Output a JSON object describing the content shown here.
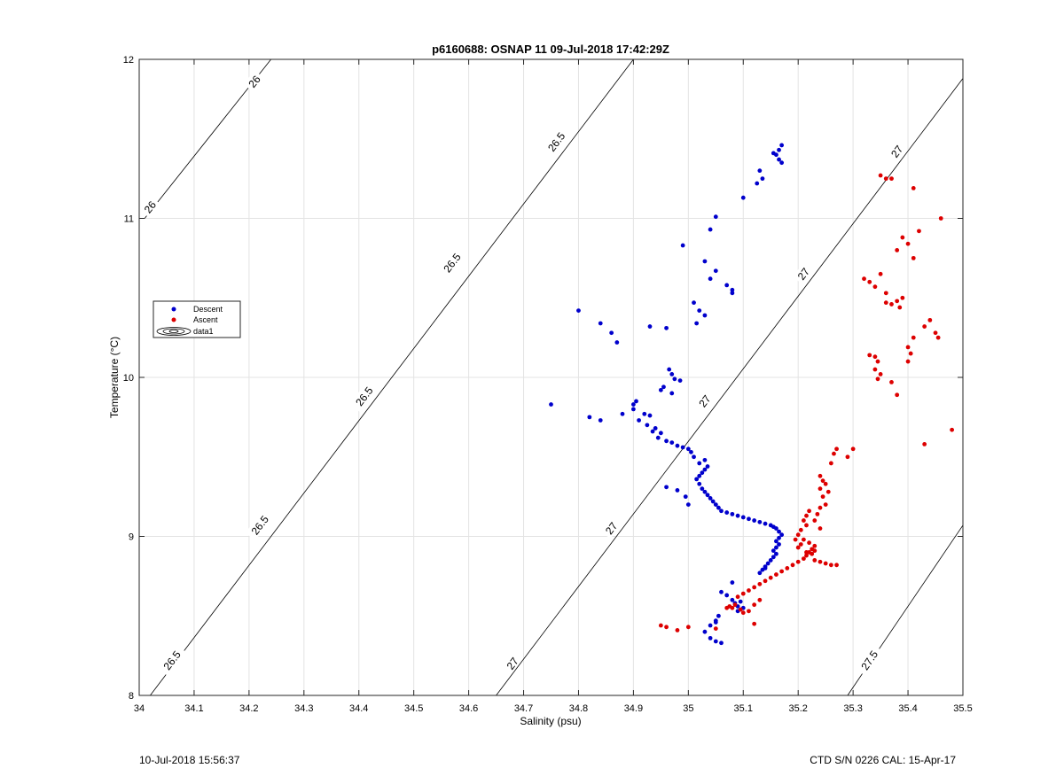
{
  "colors": {
    "descent": "#0000cc",
    "ascent": "#dd0000",
    "grid": "#e3e3e3",
    "contour": "#000000"
  },
  "footer": {
    "left": "10-Jul-2018 15:56:37",
    "right": "CTD S/N 0226  CAL: 15-Apr-17"
  },
  "chart_data": {
    "type": "scatter",
    "title": "p6160688: OSNAP 11 09-Jul-2018 17:42:29Z",
    "xlabel": "Salinity (psu)",
    "ylabel": "Temperature (°C)",
    "xlim": [
      34,
      35.5
    ],
    "ylim": [
      8,
      12
    ],
    "xticks": [
      34,
      34.1,
      34.2,
      34.3,
      34.4,
      34.5,
      34.6,
      34.7,
      34.8,
      34.9,
      35,
      35.1,
      35.2,
      35.3,
      35.4,
      35.5
    ],
    "xtick_labels": [
      "34",
      "34.1",
      "34.2",
      "34.3",
      "34.4",
      "34.5",
      "34.6",
      "34.7",
      "34.8",
      "34.9",
      "35",
      "35.1",
      "35.2",
      "35.3",
      "35.4",
      "35.5"
    ],
    "yticks": [
      8,
      9,
      10,
      11,
      12
    ],
    "ytick_labels": [
      "8",
      "9",
      "10",
      "11",
      "12"
    ],
    "grid": true,
    "legend": {
      "position": "left",
      "entries": [
        "Descent",
        "Ascent",
        "data1"
      ]
    },
    "contours": [
      {
        "label": "26",
        "x1": 34.01,
        "y1": 11.0,
        "x2": 34.24,
        "y2": 12.0,
        "label_points": [
          [
            34.02,
            11.07
          ],
          [
            34.21,
            11.86
          ]
        ]
      },
      {
        "label": "26.5",
        "x1": 34.02,
        "y1": 8.0,
        "x2": 34.9,
        "y2": 12.0,
        "label_points": [
          [
            34.06,
            8.22
          ],
          [
            34.22,
            9.07
          ],
          [
            34.41,
            9.88
          ],
          [
            34.57,
            10.72
          ],
          [
            34.76,
            11.48
          ]
        ]
      },
      {
        "label": "27",
        "x1": 34.65,
        "y1": 8.0,
        "x2": 35.5,
        "y2": 11.88,
        "label_points": [
          [
            34.68,
            8.2
          ],
          [
            34.86,
            9.05
          ],
          [
            35.03,
            9.85
          ],
          [
            35.21,
            10.65
          ],
          [
            35.38,
            11.42
          ]
        ]
      },
      {
        "label": "27.5",
        "x1": 35.29,
        "y1": 8.0,
        "x2": 35.5,
        "y2": 9.07,
        "label_points": [
          [
            35.33,
            8.22
          ]
        ]
      }
    ],
    "series": [
      {
        "name": "Descent",
        "color": "#0000cc",
        "points": [
          [
            35.17,
            11.46
          ],
          [
            35.165,
            11.43
          ],
          [
            35.16,
            11.4
          ],
          [
            35.165,
            11.37
          ],
          [
            35.17,
            11.35
          ],
          [
            35.155,
            11.41
          ],
          [
            35.13,
            11.3
          ],
          [
            35.125,
            11.22
          ],
          [
            35.135,
            11.25
          ],
          [
            35.1,
            11.13
          ],
          [
            35.05,
            11.01
          ],
          [
            35.04,
            10.93
          ],
          [
            34.99,
            10.83
          ],
          [
            35.03,
            10.73
          ],
          [
            35.05,
            10.67
          ],
          [
            35.04,
            10.62
          ],
          [
            35.07,
            10.58
          ],
          [
            35.08,
            10.55
          ],
          [
            35.08,
            10.53
          ],
          [
            35.01,
            10.47
          ],
          [
            35.02,
            10.42
          ],
          [
            35.03,
            10.39
          ],
          [
            35.015,
            10.34
          ],
          [
            34.8,
            10.42
          ],
          [
            34.84,
            10.34
          ],
          [
            34.86,
            10.28
          ],
          [
            34.87,
            10.22
          ],
          [
            34.93,
            10.32
          ],
          [
            34.96,
            10.31
          ],
          [
            34.965,
            10.05
          ],
          [
            34.97,
            10.02
          ],
          [
            34.975,
            9.99
          ],
          [
            34.985,
            9.98
          ],
          [
            34.955,
            9.94
          ],
          [
            34.97,
            9.9
          ],
          [
            34.95,
            9.92
          ],
          [
            34.75,
            9.83
          ],
          [
            34.82,
            9.75
          ],
          [
            34.84,
            9.73
          ],
          [
            34.88,
            9.77
          ],
          [
            34.9,
            9.83
          ],
          [
            34.905,
            9.85
          ],
          [
            34.9,
            9.8
          ],
          [
            34.92,
            9.77
          ],
          [
            34.93,
            9.76
          ],
          [
            34.91,
            9.73
          ],
          [
            34.925,
            9.7
          ],
          [
            34.94,
            9.68
          ],
          [
            34.935,
            9.66
          ],
          [
            34.95,
            9.65
          ],
          [
            34.945,
            9.62
          ],
          [
            34.96,
            9.6
          ],
          [
            34.97,
            9.59
          ],
          [
            34.98,
            9.57
          ],
          [
            34.99,
            9.56
          ],
          [
            35.0,
            9.55
          ],
          [
            35.005,
            9.53
          ],
          [
            35.01,
            9.5
          ],
          [
            35.03,
            9.48
          ],
          [
            35.02,
            9.46
          ],
          [
            35.035,
            9.44
          ],
          [
            35.03,
            9.42
          ],
          [
            35.025,
            9.4
          ],
          [
            35.02,
            9.38
          ],
          [
            35.015,
            9.36
          ],
          [
            35.02,
            9.33
          ],
          [
            35.025,
            9.3
          ],
          [
            35.03,
            9.28
          ],
          [
            35.035,
            9.26
          ],
          [
            35.04,
            9.24
          ],
          [
            35.045,
            9.22
          ],
          [
            35.05,
            9.2
          ],
          [
            35.055,
            9.18
          ],
          [
            35.06,
            9.16
          ],
          [
            35.07,
            9.15
          ],
          [
            35.08,
            9.14
          ],
          [
            35.09,
            9.13
          ],
          [
            35.1,
            9.12
          ],
          [
            35.11,
            9.11
          ],
          [
            35.12,
            9.1
          ],
          [
            35.13,
            9.09
          ],
          [
            35.14,
            9.08
          ],
          [
            35.15,
            9.07
          ],
          [
            35.155,
            9.06
          ],
          [
            35.16,
            9.05
          ],
          [
            35.165,
            9.03
          ],
          [
            35.17,
            9.01
          ],
          [
            35.165,
            8.99
          ],
          [
            35.16,
            8.97
          ],
          [
            35.165,
            8.95
          ],
          [
            35.16,
            8.93
          ],
          [
            35.155,
            8.91
          ],
          [
            35.16,
            8.89
          ],
          [
            35.155,
            8.87
          ],
          [
            35.15,
            8.85
          ],
          [
            35.145,
            8.83
          ],
          [
            35.14,
            8.81
          ],
          [
            35.135,
            8.79
          ],
          [
            35.13,
            8.77
          ],
          [
            35.14,
            8.8
          ],
          [
            34.96,
            9.31
          ],
          [
            34.98,
            9.29
          ],
          [
            34.995,
            9.25
          ],
          [
            35.0,
            9.2
          ],
          [
            35.06,
            8.65
          ],
          [
            35.07,
            8.63
          ],
          [
            35.08,
            8.6
          ],
          [
            35.085,
            8.58
          ],
          [
            35.09,
            8.56
          ],
          [
            35.1,
            8.55
          ],
          [
            35.09,
            8.53
          ],
          [
            35.08,
            8.71
          ],
          [
            35.095,
            8.59
          ],
          [
            35.06,
            8.33
          ],
          [
            35.05,
            8.34
          ],
          [
            35.04,
            8.36
          ],
          [
            35.03,
            8.4
          ],
          [
            35.04,
            8.44
          ],
          [
            35.05,
            8.47
          ],
          [
            35.055,
            8.5
          ],
          [
            35.05,
            8.46
          ]
        ]
      },
      {
        "name": "Ascent",
        "color": "#dd0000",
        "points": [
          [
            35.46,
            11.0
          ],
          [
            35.41,
            11.19
          ],
          [
            35.35,
            11.27
          ],
          [
            35.36,
            11.25
          ],
          [
            35.37,
            11.25
          ],
          [
            35.42,
            10.92
          ],
          [
            35.39,
            10.88
          ],
          [
            35.4,
            10.84
          ],
          [
            35.38,
            10.8
          ],
          [
            35.41,
            10.75
          ],
          [
            35.32,
            10.62
          ],
          [
            35.33,
            10.6
          ],
          [
            35.35,
            10.65
          ],
          [
            35.34,
            10.57
          ],
          [
            35.36,
            10.53
          ],
          [
            35.38,
            10.48
          ],
          [
            35.39,
            10.5
          ],
          [
            35.37,
            10.46
          ],
          [
            35.36,
            10.47
          ],
          [
            35.385,
            10.44
          ],
          [
            35.44,
            10.36
          ],
          [
            35.43,
            10.32
          ],
          [
            35.45,
            10.28
          ],
          [
            35.455,
            10.25
          ],
          [
            35.41,
            10.25
          ],
          [
            35.4,
            10.19
          ],
          [
            35.405,
            10.15
          ],
          [
            35.4,
            10.1
          ],
          [
            35.33,
            10.14
          ],
          [
            35.34,
            10.13
          ],
          [
            35.345,
            10.1
          ],
          [
            35.34,
            10.05
          ],
          [
            35.35,
            10.02
          ],
          [
            35.345,
            9.99
          ],
          [
            35.37,
            9.97
          ],
          [
            35.38,
            9.89
          ],
          [
            35.48,
            9.67
          ],
          [
            35.43,
            9.58
          ],
          [
            35.27,
            9.55
          ],
          [
            35.3,
            9.55
          ],
          [
            35.265,
            9.52
          ],
          [
            35.29,
            9.5
          ],
          [
            35.26,
            9.46
          ],
          [
            35.24,
            9.38
          ],
          [
            35.245,
            9.35
          ],
          [
            35.25,
            9.33
          ],
          [
            35.24,
            9.3
          ],
          [
            35.255,
            9.28
          ],
          [
            35.245,
            9.25
          ],
          [
            35.25,
            9.2
          ],
          [
            35.24,
            9.18
          ],
          [
            35.235,
            9.14
          ],
          [
            35.23,
            9.1
          ],
          [
            35.24,
            9.05
          ],
          [
            35.22,
            9.16
          ],
          [
            35.215,
            9.13
          ],
          [
            35.21,
            9.1
          ],
          [
            35.215,
            9.07
          ],
          [
            35.205,
            9.04
          ],
          [
            35.2,
            9.01
          ],
          [
            35.21,
            8.98
          ],
          [
            35.22,
            8.96
          ],
          [
            35.23,
            8.94
          ],
          [
            35.225,
            8.92
          ],
          [
            35.22,
            8.9
          ],
          [
            35.215,
            8.88
          ],
          [
            35.21,
            8.86
          ],
          [
            35.2,
            8.84
          ],
          [
            35.19,
            8.82
          ],
          [
            35.18,
            8.8
          ],
          [
            35.17,
            8.78
          ],
          [
            35.16,
            8.76
          ],
          [
            35.15,
            8.74
          ],
          [
            35.14,
            8.72
          ],
          [
            35.13,
            8.7
          ],
          [
            35.12,
            8.68
          ],
          [
            35.11,
            8.66
          ],
          [
            35.1,
            8.64
          ],
          [
            35.23,
            8.85
          ],
          [
            35.24,
            8.84
          ],
          [
            35.25,
            8.83
          ],
          [
            35.26,
            8.82
          ],
          [
            35.27,
            8.82
          ],
          [
            35.195,
            8.98
          ],
          [
            35.2,
            8.93
          ],
          [
            35.205,
            8.95
          ],
          [
            35.215,
            8.9
          ],
          [
            35.225,
            8.89
          ],
          [
            35.23,
            8.91
          ],
          [
            35.09,
            8.62
          ],
          [
            35.085,
            8.57
          ],
          [
            35.08,
            8.55
          ],
          [
            35.075,
            8.56
          ],
          [
            35.07,
            8.55
          ],
          [
            35.095,
            8.54
          ],
          [
            35.1,
            8.52
          ],
          [
            35.11,
            8.53
          ],
          [
            35.12,
            8.57
          ],
          [
            35.13,
            8.6
          ],
          [
            35.12,
            8.45
          ],
          [
            35.05,
            8.42
          ],
          [
            35.0,
            8.43
          ],
          [
            34.95,
            8.44
          ],
          [
            34.96,
            8.43
          ],
          [
            34.98,
            8.41
          ]
        ]
      }
    ]
  }
}
